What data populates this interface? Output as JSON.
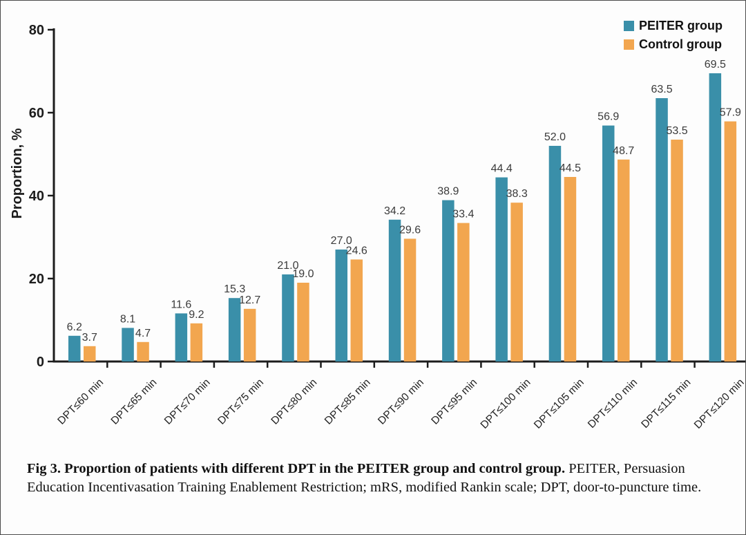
{
  "chart_data": {
    "type": "bar",
    "categories": [
      "DPT≤60 min",
      "DPT≤65 min",
      "DPT≤70 min",
      "DPT≤75 min",
      "DPT≤80 min",
      "DPT≤85 min",
      "DPT≤90 min",
      "DPT≤95 min",
      "DPT≤100 min",
      "DPT≤105 min",
      "DPT≤110 min",
      "DPT≤115 min",
      "DPT≤120 min"
    ],
    "series": [
      {
        "name": "PEITER group",
        "color": "#3A8FA9",
        "values": [
          6.2,
          8.1,
          11.6,
          15.3,
          21.0,
          27.0,
          34.2,
          38.9,
          44.4,
          52.0,
          56.9,
          63.5,
          69.5
        ]
      },
      {
        "name": "Control group",
        "color": "#F2A64F",
        "values": [
          3.7,
          4.7,
          9.2,
          12.7,
          19.0,
          24.6,
          29.6,
          33.4,
          38.3,
          44.5,
          48.7,
          53.5,
          57.9
        ]
      }
    ],
    "title": "",
    "xlabel": "",
    "ylabel": "Proportion, %",
    "ylim": [
      0,
      80
    ],
    "yticks": [
      0,
      20,
      40,
      60,
      80
    ],
    "grid": false,
    "value_labels": true,
    "legend_position": "top-right",
    "axis_color": "#1C1C1C",
    "value_label_color": "#3A3A3A",
    "tick_label_color": "#1C1C1C",
    "category_label_color": "#222222"
  },
  "caption": {
    "bold": "Fig 3. Proportion of patients with different DPT in the PEITER group and control group.",
    "regular": " PEITER, Persuasion Education Incentivasation Training Enablement Restriction; mRS, modified Rankin scale; DPT, door-to-puncture time."
  }
}
